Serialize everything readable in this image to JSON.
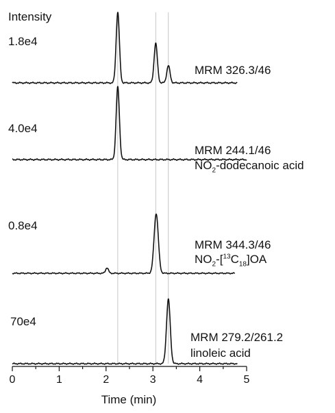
{
  "chart_data": {
    "type": "line",
    "ylabel": "Intensity",
    "xlabel": "Time (min)",
    "xlim": [
      0,
      5
    ],
    "x_ticks": [
      "0",
      "1",
      "2",
      "3",
      "4",
      "5"
    ],
    "reference_lines_x": [
      2.25,
      3.06,
      3.33
    ],
    "panels": [
      {
        "scale": "1.8e4",
        "label": "MRM 326.3/46",
        "compound": "",
        "x_range": [
          0,
          4.8
        ],
        "peaks": [
          {
            "x": 2.25,
            "height": 0.98,
            "width": 0.035
          },
          {
            "x": 3.06,
            "height": 0.55,
            "width": 0.035
          },
          {
            "x": 3.33,
            "height": 0.24,
            "width": 0.035
          }
        ]
      },
      {
        "scale": "4.0e4",
        "label": "MRM 244.1/46",
        "compound": {
          "pre": "NO",
          "sub": "2",
          "post": "-dodecanoic acid"
        },
        "x_range": [
          0,
          5.0
        ],
        "peaks": [
          {
            "x": 2.25,
            "height": 0.98,
            "width": 0.035
          }
        ]
      },
      {
        "scale": "0.8e4",
        "label": "MRM 344.3/46",
        "compound": {
          "pre": "NO",
          "sub": "2",
          "mid": "-[",
          "sup": "13",
          "mid2": "C",
          "sub2": "18",
          "post": "]OA"
        },
        "x_range": [
          0,
          4.75
        ],
        "peaks": [
          {
            "x": 2.02,
            "height": 0.09,
            "width": 0.03
          },
          {
            "x": 3.07,
            "height": 0.97,
            "width": 0.045
          }
        ]
      },
      {
        "scale": "70e4",
        "label": "MRM 279.2/261.2",
        "compound": "linoleic acid",
        "x_range": [
          0,
          4.8
        ],
        "peaks": [
          {
            "x": 3.33,
            "height": 0.98,
            "width": 0.04
          }
        ]
      }
    ]
  }
}
